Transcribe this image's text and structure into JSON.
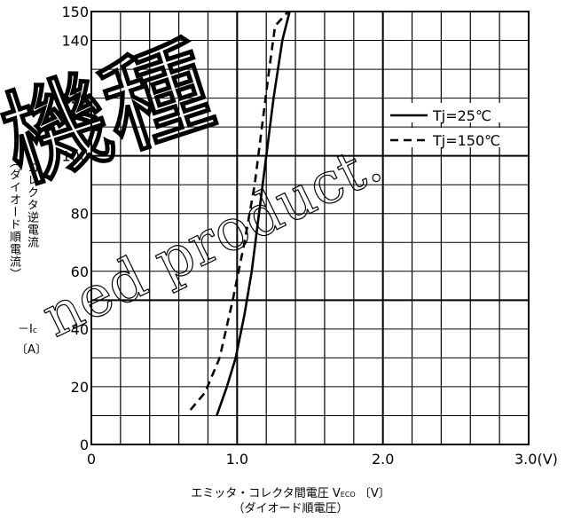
{
  "chart_data": {
    "type": "line",
    "x_axis": {
      "label_line1": "エミッタ・コレクタ間電圧 V",
      "label_sub": "ECO",
      "label_unit": "〔V〕",
      "label_line2": "（ダイオード順電圧）",
      "range": [
        0,
        3.0
      ],
      "ticks": [
        {
          "value": 0,
          "label": "0"
        },
        {
          "value": 1.0,
          "label": "1.0"
        },
        {
          "value": 2.0,
          "label": "2.0"
        },
        {
          "value": 3.0,
          "label": "3.0(V)"
        }
      ]
    },
    "y_axis": {
      "label_main": "コレクタ逆電流",
      "label_paren": "（ダイオード順電流）",
      "label_symbol": "－I",
      "label_symbol_sub": "c",
      "label_unit": "〔A〕",
      "range": [
        0,
        150
      ],
      "ticks": [
        0,
        20,
        40,
        60,
        80,
        100,
        120,
        140,
        150
      ]
    },
    "grid": true,
    "legend_position": "top-right",
    "series": [
      {
        "name": "Tj=25℃",
        "line_style": "solid",
        "points": [
          [
            0.86,
            10
          ],
          [
            0.93,
            20
          ],
          [
            0.99,
            30
          ],
          [
            1.05,
            45
          ],
          [
            1.1,
            60
          ],
          [
            1.15,
            80
          ],
          [
            1.2,
            100
          ],
          [
            1.25,
            120
          ],
          [
            1.31,
            140
          ],
          [
            1.36,
            150
          ]
        ]
      },
      {
        "name": "Tj=150℃",
        "line_style": "dashed",
        "points": [
          [
            0.68,
            12
          ],
          [
            0.78,
            18
          ],
          [
            0.88,
            30
          ],
          [
            0.97,
            50
          ],
          [
            1.05,
            70
          ],
          [
            1.12,
            90
          ],
          [
            1.17,
            110
          ],
          [
            1.22,
            130
          ],
          [
            1.26,
            145
          ],
          [
            1.35,
            150
          ]
        ]
      }
    ]
  },
  "watermark": {
    "kanji": "機種",
    "text": "ned product."
  }
}
